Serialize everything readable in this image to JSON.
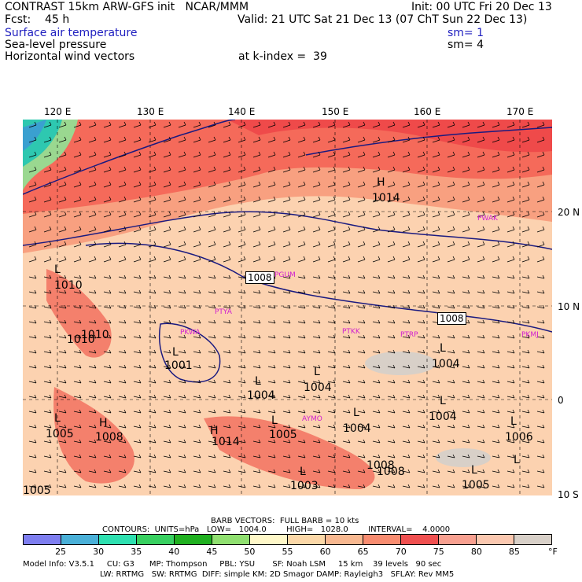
{
  "header": {
    "line1_left": "CONTRAST 15km ARW-GFS init   NCAR/MMM",
    "line1_right": "Init: 00 UTC Fri 20 Dec 13",
    "fcst": "Fcst:    45 h",
    "valid": "Valid: 21 UTC Sat 21 Dec 13 (07 ChT Sun 22 Dec 13)",
    "field1": "Surface air temperature",
    "field1_sm": "sm= 1",
    "field2": "Sea-level pressure",
    "field2_sm": "sm= 4",
    "field3": "Horizontal wind vectors",
    "kindex": "at k-index =  39"
  },
  "map": {
    "lon_labels": [
      "120 E",
      "130 E",
      "140 E",
      "150 E",
      "160 E",
      "170 E"
    ],
    "lat_labels": [
      "20 N",
      "10 N",
      "0",
      "10 S"
    ],
    "isobar_labels": [
      "1014",
      "1008",
      "1008",
      "1010",
      "1010",
      "1001",
      "1004",
      "1004",
      "1004",
      "1004",
      "1005",
      "1008",
      "1004",
      "1005",
      "1008",
      "1006",
      "1005",
      "1008",
      "1014",
      "1005",
      "1003",
      "1010"
    ],
    "station_labels": [
      "PGUM",
      "PTYA",
      "PTKK",
      "PTRP",
      "PKMJ",
      "PWAK",
      "PKWA",
      "AYMO"
    ],
    "pressure_centers": [
      "H",
      "H",
      "H",
      "L",
      "L",
      "L",
      "L",
      "L",
      "L",
      "L",
      "L",
      "L",
      "L",
      "L",
      "L",
      "L"
    ]
  },
  "footer": {
    "barb": "BARB VECTORS:  FULL BARB = 10 kts",
    "contours": "CONTOURS:  UNITS=hPa   LOW=   1004.0        HIGH=   1028.0        INTERVAL=    4.0000",
    "units": "°F",
    "model1": "Model Info: V3.5.1     CU: G3      MP: Thompson     PBL: YSU       SF: Noah LSM     15 km    39 levels   90 sec",
    "model2": "LW: RRTMG   SW: RRTMG  DIFF: simple KM: 2D Smagor DAMP: Rayleigh3   SFLAY: Rev MM5"
  },
  "colorbar": {
    "ticks": [
      "25",
      "30",
      "35",
      "40",
      "45",
      "50",
      "55",
      "60",
      "65",
      "70",
      "75",
      "80",
      "85"
    ],
    "colors": [
      "#7e7ef0",
      "#4ab0d8",
      "#2ee0b0",
      "#38d060",
      "#20b020",
      "#90e070",
      "#fff8c8",
      "#fcd8a8",
      "#f8b890",
      "#f88c70",
      "#f05050",
      "#f8a090",
      "#fbc8b0",
      "#d8d0c8"
    ]
  }
}
